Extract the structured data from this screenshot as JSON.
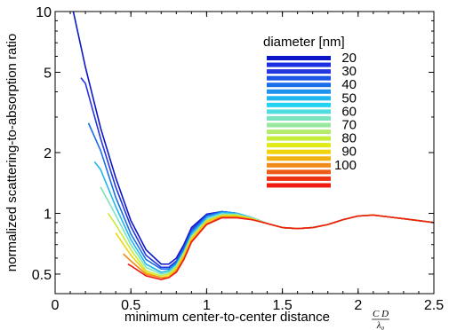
{
  "chart_data": {
    "type": "line",
    "title": "",
    "xlabel": "minimum center-to-center distance",
    "xlabel_fraction": {
      "numerator": "C D",
      "denominator": "λ₀"
    },
    "ylabel": "normalized scattering-to-absorption ratio",
    "xlim": [
      0,
      2.5
    ],
    "ylim": [
      0.4,
      10
    ],
    "yscale": "log",
    "grid": false,
    "legend_title": "diameter [nm]",
    "legend_position": "top-right",
    "x_ticks": [
      0,
      0.5,
      1,
      1.5,
      2,
      2.5
    ],
    "x_tick_labels": [
      "0",
      "0.5",
      "1",
      "1.5",
      "2",
      "2.5"
    ],
    "y_ticks": [
      0.5,
      1,
      2,
      5,
      10
    ],
    "y_tick_labels": [
      "0.5",
      "1",
      "2",
      "5",
      "10"
    ],
    "series": [
      {
        "name": "20",
        "color": "#0d15c9",
        "x": [
          0.12,
          0.2,
          0.3,
          0.4,
          0.5,
          0.6,
          0.7,
          0.75,
          0.8,
          0.85,
          0.9,
          1.0,
          1.1,
          1.2,
          1.3,
          1.4,
          1.5,
          1.6,
          1.7,
          1.8,
          1.9,
          2.0,
          2.1,
          2.2,
          2.3,
          2.4,
          2.5
        ],
        "y": [
          10.0,
          5.3,
          2.65,
          1.5,
          0.92,
          0.66,
          0.56,
          0.56,
          0.6,
          0.7,
          0.85,
          0.99,
          1.02,
          1.0,
          0.95,
          0.89,
          0.85,
          0.84,
          0.85,
          0.88,
          0.93,
          0.97,
          0.98,
          0.96,
          0.94,
          0.92,
          0.9
        ]
      },
      {
        "name": "30",
        "color": "#2535e0",
        "x": [
          0.17,
          0.2,
          0.3,
          0.4,
          0.5,
          0.6,
          0.7,
          0.75,
          0.8,
          0.85,
          0.9,
          1.0,
          1.1,
          1.2,
          1.3,
          1.4,
          1.5,
          1.6,
          1.7,
          1.8,
          1.9,
          2.0,
          2.1,
          2.2,
          2.3,
          2.4,
          2.5
        ],
        "y": [
          4.7,
          4.4,
          2.35,
          1.35,
          0.86,
          0.62,
          0.54,
          0.54,
          0.58,
          0.68,
          0.83,
          0.98,
          1.02,
          1.0,
          0.95,
          0.89,
          0.85,
          0.84,
          0.85,
          0.88,
          0.93,
          0.97,
          0.98,
          0.96,
          0.94,
          0.92,
          0.9
        ]
      },
      {
        "name": "40",
        "color": "#1a6ee8",
        "x": [
          0.22,
          0.3,
          0.4,
          0.5,
          0.6,
          0.7,
          0.75,
          0.8,
          0.85,
          0.9,
          1.0,
          1.1,
          1.2,
          1.3,
          1.4,
          1.5,
          1.6,
          1.7,
          1.8,
          1.9,
          2.0,
          2.1,
          2.2,
          2.3,
          2.4,
          2.5
        ],
        "y": [
          2.8,
          2.05,
          1.2,
          0.79,
          0.59,
          0.53,
          0.53,
          0.57,
          0.67,
          0.81,
          0.97,
          1.02,
          1.0,
          0.95,
          0.89,
          0.85,
          0.84,
          0.85,
          0.88,
          0.93,
          0.97,
          0.98,
          0.96,
          0.94,
          0.92,
          0.9
        ]
      },
      {
        "name": "50",
        "color": "#1eb6f0",
        "x": [
          0.26,
          0.3,
          0.4,
          0.5,
          0.6,
          0.7,
          0.75,
          0.8,
          0.85,
          0.9,
          1.0,
          1.1,
          1.2,
          1.3,
          1.4,
          1.5,
          1.6,
          1.7,
          1.8,
          1.9,
          2.0,
          2.1,
          2.2,
          2.3,
          2.4,
          2.5
        ],
        "y": [
          1.8,
          1.65,
          1.08,
          0.74,
          0.56,
          0.51,
          0.52,
          0.56,
          0.65,
          0.79,
          0.95,
          1.01,
          1.0,
          0.95,
          0.89,
          0.85,
          0.84,
          0.85,
          0.88,
          0.93,
          0.97,
          0.98,
          0.96,
          0.94,
          0.92,
          0.9
        ]
      },
      {
        "name": "60",
        "color": "#7be3bd",
        "x": [
          0.3,
          0.4,
          0.5,
          0.6,
          0.7,
          0.75,
          0.8,
          0.85,
          0.9,
          1.0,
          1.1,
          1.2,
          1.3,
          1.4,
          1.5,
          1.6,
          1.7,
          1.8,
          1.9,
          2.0,
          2.1,
          2.2,
          2.3,
          2.4,
          2.5
        ],
        "y": [
          1.35,
          0.98,
          0.7,
          0.54,
          0.5,
          0.51,
          0.55,
          0.64,
          0.77,
          0.93,
          0.99,
          0.99,
          0.95,
          0.89,
          0.85,
          0.84,
          0.85,
          0.88,
          0.93,
          0.97,
          0.98,
          0.96,
          0.94,
          0.92,
          0.9
        ]
      },
      {
        "name": "70",
        "color": "#c6ec3a",
        "x": [
          0.35,
          0.4,
          0.5,
          0.6,
          0.7,
          0.75,
          0.8,
          0.85,
          0.9,
          1.0,
          1.1,
          1.2,
          1.3,
          1.4,
          1.5,
          1.6,
          1.7,
          1.8,
          1.9,
          2.0,
          2.1,
          2.2,
          2.3,
          2.4,
          2.5
        ],
        "y": [
          1.0,
          0.88,
          0.66,
          0.52,
          0.49,
          0.5,
          0.54,
          0.63,
          0.76,
          0.92,
          0.98,
          0.98,
          0.94,
          0.89,
          0.85,
          0.84,
          0.85,
          0.88,
          0.93,
          0.97,
          0.98,
          0.96,
          0.94,
          0.92,
          0.9
        ]
      },
      {
        "name": "80",
        "color": "#f1d40c",
        "x": [
          0.4,
          0.5,
          0.6,
          0.7,
          0.75,
          0.8,
          0.85,
          0.9,
          1.0,
          1.1,
          1.2,
          1.3,
          1.4,
          1.5,
          1.6,
          1.7,
          1.8,
          1.9,
          2.0,
          2.1,
          2.2,
          2.3,
          2.4,
          2.5
        ],
        "y": [
          0.8,
          0.62,
          0.51,
          0.48,
          0.49,
          0.53,
          0.62,
          0.75,
          0.91,
          0.97,
          0.97,
          0.94,
          0.89,
          0.85,
          0.84,
          0.85,
          0.88,
          0.93,
          0.97,
          0.98,
          0.96,
          0.94,
          0.92,
          0.9
        ]
      },
      {
        "name": "90",
        "color": "#f08a1a",
        "x": [
          0.45,
          0.5,
          0.6,
          0.7,
          0.75,
          0.8,
          0.85,
          0.9,
          1.0,
          1.1,
          1.2,
          1.3,
          1.4,
          1.5,
          1.6,
          1.7,
          1.8,
          1.9,
          2.0,
          2.1,
          2.2,
          2.3,
          2.4,
          2.5
        ],
        "y": [
          0.63,
          0.58,
          0.5,
          0.48,
          0.48,
          0.52,
          0.6,
          0.73,
          0.89,
          0.96,
          0.96,
          0.93,
          0.89,
          0.85,
          0.84,
          0.85,
          0.88,
          0.93,
          0.97,
          0.98,
          0.96,
          0.94,
          0.92,
          0.9
        ]
      },
      {
        "name": "100",
        "color": "#ee1c10",
        "x": [
          0.48,
          0.5,
          0.6,
          0.7,
          0.75,
          0.8,
          0.85,
          0.9,
          1.0,
          1.1,
          1.2,
          1.3,
          1.4,
          1.5,
          1.6,
          1.7,
          1.8,
          1.9,
          2.0,
          2.1,
          2.2,
          2.3,
          2.4,
          2.5
        ],
        "y": [
          0.56,
          0.55,
          0.49,
          0.47,
          0.48,
          0.51,
          0.59,
          0.72,
          0.88,
          0.95,
          0.95,
          0.93,
          0.89,
          0.85,
          0.84,
          0.85,
          0.88,
          0.93,
          0.97,
          0.98,
          0.96,
          0.94,
          0.92,
          0.9
        ]
      }
    ],
    "legend_entries": [
      "20",
      "30",
      "40",
      "50",
      "60",
      "70",
      "80",
      "90",
      "100"
    ],
    "legend_colors_gradient": [
      "#0d15c9",
      "#1b2ee0",
      "#2535e0",
      "#1a55e6",
      "#1a6ee8",
      "#1c92ee",
      "#1eb6f0",
      "#22d2f2",
      "#4fdcdc",
      "#7be3bd",
      "#9ae89f",
      "#b4ec6c",
      "#c6ec3a",
      "#e0ea14",
      "#f1d40c",
      "#f2b214",
      "#f08a1a",
      "#ee5a18",
      "#ee3314",
      "#ee1c10"
    ]
  }
}
